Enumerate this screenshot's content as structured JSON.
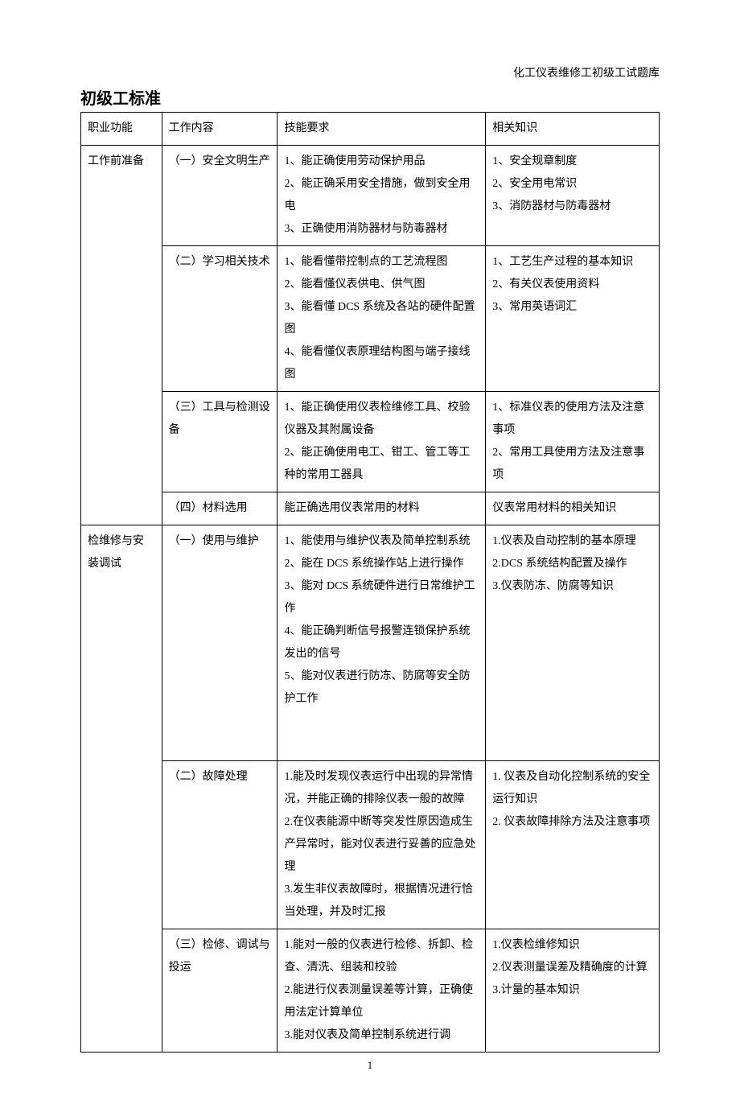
{
  "document": {
    "header_right": "化工仪表维修工初级工试题库",
    "title": "初级工标准",
    "page_number": "1",
    "columns": {
      "c1": "职业功能",
      "c2": "工作内容",
      "c3": "技能要求",
      "c4": "相关知识"
    },
    "rows": [
      {
        "func": "工作前准备",
        "items": [
          {
            "work": "（一）安全文明生产",
            "skill": "1、能正确使用劳动保护用品\n2、能正确采用安全措施，做到安全用电\n3、正确使用消防器材与防毒器材",
            "know": "1、安全规章制度\n2、安全用电常识\n3、消防器材与防毒器材"
          },
          {
            "work": "（二）学习相关技术",
            "skill": "1、能看懂带控制点的工艺流程图\n2、能看懂仪表供电、供气图\n3、能看懂 DCS 系统及各站的硬件配置图\n4、能看懂仪表原理结构图与端子接线图",
            "know": "1、工艺生产过程的基本知识\n2、有关仪表使用资料\n3、常用英语词汇"
          },
          {
            "work": "（三）工具与检测设备",
            "skill": "1、能正确使用仪表检维修工具、校验仪器及其附属设备\n2、能正确使用电工、钳工、管工等工种的常用工器具",
            "know": "1、标准仪表的使用方法及注意事项\n2、常用工具使用方法及注意事项"
          },
          {
            "work": "（四）材料选用",
            "skill": "能正确选用仪表常用的材料",
            "know": "仪表常用材料的相关知识"
          }
        ]
      },
      {
        "func": "检维修与安装调试",
        "items": [
          {
            "work": "（一）使用与维护",
            "skill": "1、能使用与维护仪表及简单控制系统\n2、能在 DCS 系统操作站上进行操作\n3、能对 DCS 系统硬件进行日常维护工作\n4、能正确判断信号报警连锁保护系统发出的信号\n5、能对仪表进行防冻、防腐等安全防护工作\n\n\n",
            "know": "1.仪表及自动控制的基本原理\n2.DCS 系统结构配置及操作\n3.仪表防冻、防腐等知识"
          },
          {
            "work": "（二）故障处理",
            "skill": "1.能及时发现仪表运行中出现的异常情况，并能正确的排除仪表一般的故障\n2.在仪表能源中断等突发性原因造成生产异常时，能对仪表进行妥善的应急处理\n3.发生非仪表故障时，根据情况进行恰当处理，并及时汇报",
            "know": "1. 仪表及自动化控制系统的安全运行知识\n2. 仪表故障排除方法及注意事项"
          },
          {
            "work": "（三）检修、调试与投运",
            "skill": "1.能对一般的仪表进行检修、拆卸、检查、清洗、组装和校验\n2.能进行仪表测量误差等计算，正确使用法定计算单位\n3.能对仪表及简单控制系统进行调",
            "know": "1.仪表检维修知识\n2.仪表测量误差及精确度的计算\n3.计量的基本知识"
          }
        ]
      }
    ]
  },
  "style": {
    "font_family": "SimSun",
    "font_size_body": 14,
    "font_size_title": 20,
    "line_height": 2.0,
    "border_color": "#000000",
    "background": "#ffffff",
    "col_widths_pct": [
      14,
      20,
      36,
      30
    ]
  }
}
